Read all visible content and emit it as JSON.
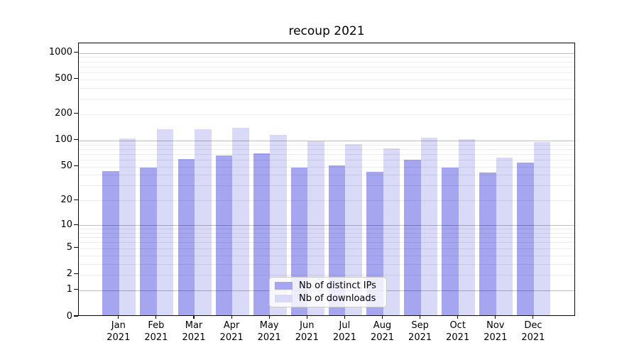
{
  "figure": {
    "background": "#ffffff",
    "text_color": "#000000"
  },
  "chart_data": {
    "type": "bar",
    "title": "recoup 2021",
    "categories": [
      "Jan",
      "Feb",
      "Mar",
      "Apr",
      "May",
      "Jun",
      "Jul",
      "Aug",
      "Sep",
      "Oct",
      "Nov",
      "Dec"
    ],
    "category_line2": "2021",
    "series": [
      {
        "name": "Nb of distinct IPs",
        "color": "#a5a5f0",
        "values": [
          43,
          47,
          59,
          65,
          68,
          47,
          50,
          42,
          58,
          47,
          41,
          54
        ]
      },
      {
        "name": "Nb of downloads",
        "color": "#d9d9f8",
        "values": [
          102,
          130,
          130,
          134,
          111,
          94,
          87,
          78,
          103,
          100,
          61,
          92
        ]
      }
    ],
    "xlabel": "",
    "ylabel": "",
    "y_axis": {
      "scale": "log-like (position proportional to log10(value+1))",
      "tick_values": [
        0,
        1,
        2,
        5,
        10,
        20,
        50,
        100,
        200,
        500,
        1000
      ],
      "major_grid_values": [
        1,
        10,
        100,
        1000
      ],
      "ylim": [
        0,
        1290
      ],
      "grid": "on"
    },
    "legend": {
      "position": "lower center",
      "entries": [
        "Nb of distinct IPs",
        "Nb of downloads"
      ]
    }
  },
  "style_colors": {
    "major_grid": "rgba(0,0,0,0.26)",
    "minor_grid": "rgba(0,0,0,0.07)",
    "spine": "#0a0a0a",
    "legend_border": "#cbcbcb"
  }
}
